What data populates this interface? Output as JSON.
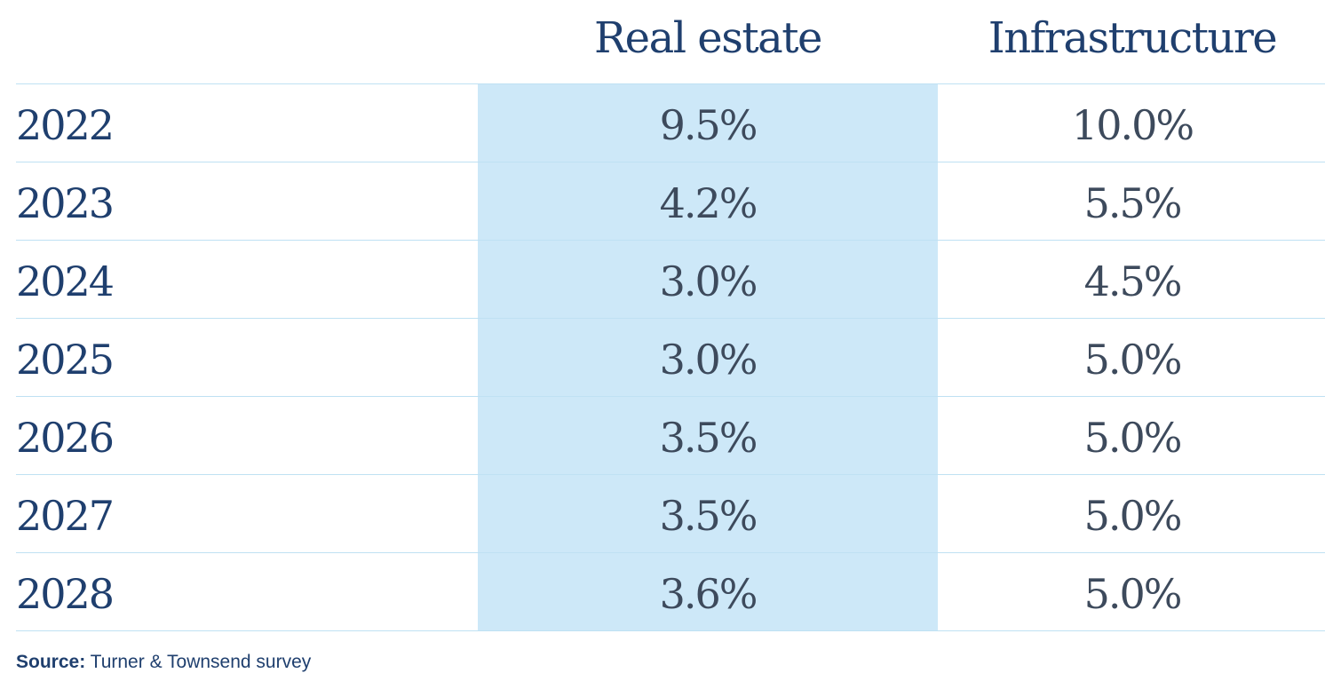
{
  "chart_data": {
    "type": "table",
    "columns": [
      "",
      "Real estate",
      "Infrastructure"
    ],
    "rows": [
      {
        "year": "2022",
        "real_estate": "9.5%",
        "infrastructure": "10.0%"
      },
      {
        "year": "2023",
        "real_estate": "4.2%",
        "infrastructure": "5.5%"
      },
      {
        "year": "2024",
        "real_estate": "3.0%",
        "infrastructure": "4.5%"
      },
      {
        "year": "2025",
        "real_estate": "3.0%",
        "infrastructure": "5.0%"
      },
      {
        "year": "2026",
        "real_estate": "3.5%",
        "infrastructure": "5.0%"
      },
      {
        "year": "2027",
        "real_estate": "3.5%",
        "infrastructure": "5.0%"
      },
      {
        "year": "2028",
        "real_estate": "3.6%",
        "infrastructure": "5.0%"
      }
    ],
    "highlight_color": "#cde8f8",
    "text_color": "#1f3f6e",
    "value_color": "#3d4a5c",
    "rule_color": "#bfe1f3"
  },
  "source": {
    "label": "Source:",
    "text": "Turner & Townsend survey"
  }
}
